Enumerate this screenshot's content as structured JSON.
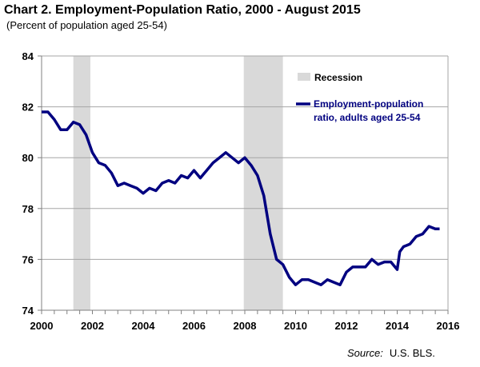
{
  "chart_data": {
    "type": "line",
    "title": "Chart 2. Employment-Population Ratio, 2000 - August 2015",
    "subtitle": "(Percent of population aged 25-54)",
    "xlabel": "",
    "ylabel": "",
    "xlim": [
      2000,
      2016
    ],
    "ylim": [
      74,
      84
    ],
    "x_ticks": [
      2000,
      2002,
      2004,
      2006,
      2008,
      2010,
      2012,
      2014,
      2016
    ],
    "y_ticks": [
      74,
      76,
      78,
      80,
      82,
      84
    ],
    "grid": "horizontal",
    "legend_position": "top-right",
    "recessions": [
      [
        2001.25,
        2001.92
      ],
      [
        2007.96,
        2009.5
      ]
    ],
    "legend": {
      "recession_label": "Recession",
      "series_label_line1": "Employment-population",
      "series_label_line2": "ratio, adults aged 25-54"
    },
    "series": [
      {
        "name": "Employment-population ratio, adults aged 25-54",
        "color": "#000080",
        "x": [
          2000,
          2000.25,
          2000.5,
          2000.75,
          2001,
          2001.25,
          2001.5,
          2001.75,
          2002,
          2002.25,
          2002.5,
          2002.75,
          2003,
          2003.25,
          2003.5,
          2003.75,
          2004,
          2004.25,
          2004.5,
          2004.75,
          2005,
          2005.25,
          2005.5,
          2005.75,
          2006,
          2006.25,
          2006.5,
          2006.75,
          2007,
          2007.25,
          2007.5,
          2007.75,
          2008,
          2008.25,
          2008.5,
          2008.75,
          2009,
          2009.25,
          2009.5,
          2009.75,
          2010,
          2010.25,
          2010.5,
          2010.75,
          2011,
          2011.25,
          2011.5,
          2011.75,
          2012,
          2012.25,
          2012.5,
          2012.75,
          2013,
          2013.25,
          2013.5,
          2013.75,
          2014,
          2014.1,
          2014.25,
          2014.5,
          2014.75,
          2015,
          2015.25,
          2015.5,
          2015.67
        ],
        "y": [
          81.8,
          81.8,
          81.5,
          81.1,
          81.1,
          81.4,
          81.3,
          80.9,
          80.2,
          79.8,
          79.7,
          79.4,
          78.9,
          79.0,
          78.9,
          78.8,
          78.6,
          78.8,
          78.7,
          79.0,
          79.1,
          79.0,
          79.3,
          79.2,
          79.5,
          79.2,
          79.5,
          79.8,
          80.0,
          80.2,
          80.0,
          79.8,
          80.0,
          79.7,
          79.3,
          78.5,
          77.0,
          76.0,
          75.8,
          75.3,
          75.0,
          75.2,
          75.2,
          75.1,
          75.0,
          75.2,
          75.1,
          75.0,
          75.5,
          75.7,
          75.7,
          75.7,
          76.0,
          75.8,
          75.9,
          75.9,
          75.6,
          76.3,
          76.5,
          76.6,
          76.9,
          77.0,
          77.3,
          77.2,
          77.2
        ]
      }
    ]
  },
  "source_label": "Source:",
  "source_value": "U.S. BLS."
}
